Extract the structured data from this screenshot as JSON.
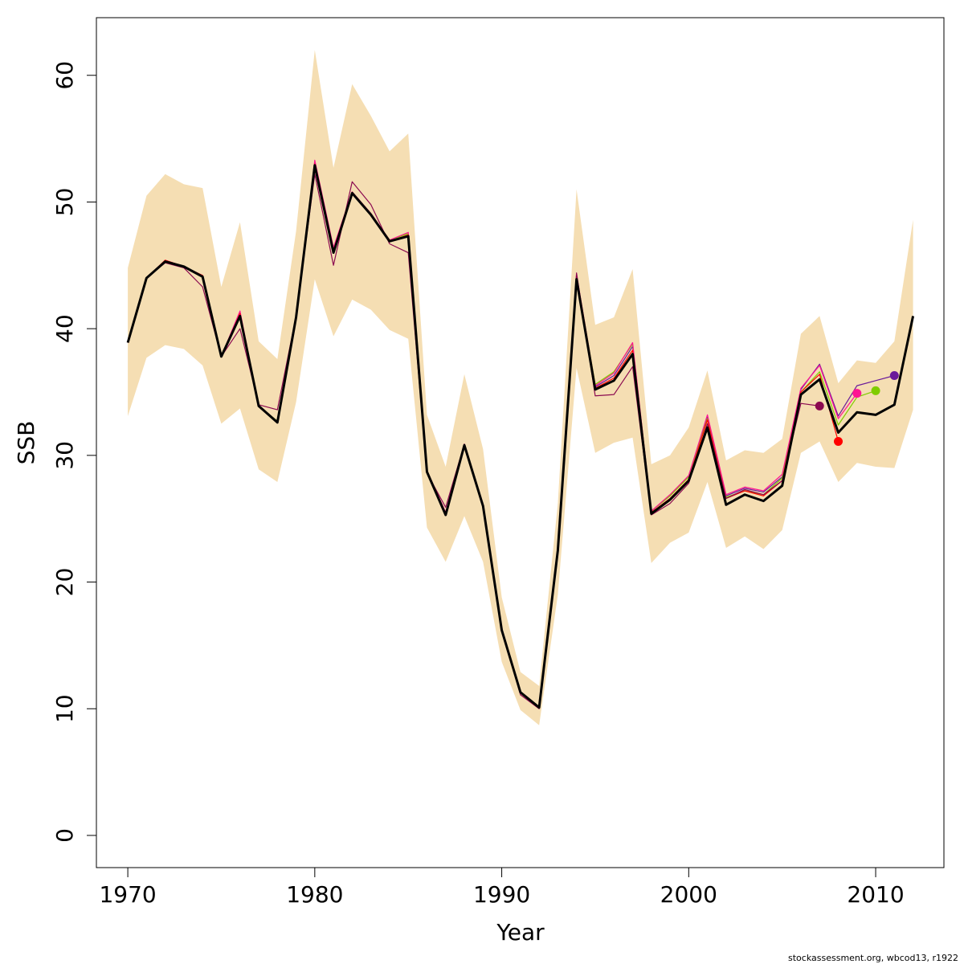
{
  "chart_data": {
    "type": "line",
    "xlabel": "Year",
    "ylabel": "SSB",
    "footnote": "stockassessment.org, wbcod13, r1922",
    "x": [
      1970,
      1971,
      1972,
      1973,
      1974,
      1975,
      1976,
      1977,
      1978,
      1979,
      1980,
      1981,
      1982,
      1983,
      1984,
      1985,
      1986,
      1987,
      1988,
      1989,
      1990,
      1991,
      1992,
      1993,
      1994,
      1995,
      1996,
      1997,
      1998,
      1999,
      2000,
      2001,
      2002,
      2003,
      2004,
      2005,
      2006,
      2007,
      2008,
      2009,
      2010,
      2011,
      2012
    ],
    "band": {
      "color": "#f5deb3",
      "upper": [
        44.8,
        50.5,
        52.2,
        51.4,
        51.1,
        43.3,
        48.4,
        39.0,
        37.6,
        47.7,
        62.0,
        52.7,
        59.3,
        56.8,
        54.0,
        55.4,
        33.2,
        29.1,
        36.4,
        30.5,
        18.8,
        12.9,
        11.8,
        26.2,
        51.0,
        40.3,
        40.9,
        44.7,
        29.3,
        30.0,
        32.2,
        36.7,
        29.6,
        30.4,
        30.2,
        31.3,
        39.6,
        41.0,
        35.7,
        37.5,
        37.3,
        39.0,
        48.6
      ],
      "lower": [
        33.1,
        37.7,
        38.7,
        38.4,
        37.1,
        32.5,
        33.7,
        28.9,
        27.9,
        34.2,
        43.9,
        39.4,
        42.3,
        41.5,
        39.9,
        39.2,
        24.3,
        21.6,
        25.2,
        21.6,
        13.7,
        9.9,
        8.7,
        19.0,
        36.9,
        30.2,
        31.0,
        31.4,
        21.5,
        23.1,
        23.9,
        27.9,
        22.7,
        23.6,
        22.6,
        24.1,
        30.2,
        31.1,
        27.9,
        29.4,
        29.1,
        29.0,
        33.6
      ]
    },
    "series": [
      {
        "color": "#000000",
        "values": [
          38.9,
          44.0,
          45.3,
          44.9,
          44.1,
          37.8,
          41.0,
          33.9,
          32.6,
          40.9,
          52.9,
          46.0,
          50.7,
          49.0,
          46.9,
          47.3,
          28.7,
          25.3,
          30.8,
          26.0,
          16.2,
          11.3,
          10.1,
          22.5,
          43.9,
          35.2,
          35.9,
          38.0,
          25.4,
          26.5,
          28.0,
          32.2,
          26.1,
          26.9,
          26.4,
          27.6,
          34.8,
          36.0,
          31.8,
          33.4,
          33.2,
          34.0,
          41.0
        ]
      },
      {
        "color": "#6a1b9a",
        "values": [
          38.9,
          44.0,
          45.4,
          44.9,
          44.2,
          37.8,
          41.2,
          33.9,
          32.7,
          40.9,
          53.1,
          46.2,
          50.8,
          49.1,
          46.9,
          47.4,
          28.8,
          25.4,
          30.8,
          26.1,
          16.3,
          11.3,
          10.1,
          22.6,
          44.1,
          35.4,
          36.3,
          38.6,
          25.6,
          26.8,
          28.4,
          33.0,
          26.8,
          27.4,
          27.1,
          28.3,
          35.2,
          37.2,
          33.1,
          35.5,
          35.9,
          36.3,
          null
        ]
      },
      {
        "color": "#7fcc00",
        "values": [
          38.9,
          44.0,
          45.4,
          44.9,
          44.2,
          37.8,
          41.3,
          33.9,
          32.7,
          40.9,
          53.2,
          46.3,
          50.8,
          49.1,
          47.0,
          47.5,
          28.8,
          25.4,
          30.8,
          26.1,
          16.3,
          11.3,
          10.1,
          22.6,
          44.2,
          35.6,
          36.6,
          38.8,
          25.6,
          26.8,
          28.3,
          32.9,
          26.7,
          27.2,
          26.9,
          28.2,
          35.0,
          36.6,
          32.4,
          34.6,
          35.1,
          null,
          null
        ]
      },
      {
        "color": "#ff1493",
        "values": [
          38.9,
          44.0,
          45.4,
          44.9,
          44.2,
          37.8,
          41.4,
          33.9,
          32.6,
          40.9,
          53.3,
          46.4,
          50.8,
          49.1,
          47.0,
          47.6,
          28.8,
          25.5,
          30.8,
          26.1,
          16.3,
          11.3,
          10.1,
          22.6,
          44.3,
          35.5,
          36.5,
          38.9,
          25.6,
          26.9,
          28.4,
          33.2,
          26.9,
          27.5,
          27.2,
          28.5,
          35.3,
          37.1,
          32.9,
          34.9,
          null,
          null,
          null
        ]
      },
      {
        "color": "#ff0000",
        "values": [
          38.9,
          44.0,
          45.4,
          44.9,
          44.2,
          37.8,
          41.2,
          33.9,
          32.6,
          40.9,
          53.0,
          46.2,
          50.7,
          49.0,
          46.9,
          47.4,
          28.7,
          25.3,
          30.8,
          26.0,
          16.2,
          11.3,
          10.1,
          22.5,
          44.0,
          35.3,
          36.1,
          38.3,
          25.5,
          26.6,
          28.1,
          32.8,
          26.6,
          27.2,
          26.8,
          28.0,
          35.0,
          36.4,
          31.1,
          null,
          null,
          null,
          null
        ]
      },
      {
        "color": "#8b0a50",
        "values": [
          38.9,
          44.0,
          45.2,
          44.8,
          43.3,
          37.8,
          40.0,
          34.0,
          33.6,
          41.0,
          52.2,
          45.0,
          51.6,
          49.8,
          46.7,
          46.0,
          28.6,
          25.9,
          30.9,
          26.0,
          16.2,
          11.1,
          10.0,
          22.4,
          44.4,
          34.7,
          34.8,
          37.0,
          25.3,
          26.2,
          27.8,
          32.5,
          26.6,
          27.3,
          26.9,
          28.0,
          34.1,
          33.9,
          null,
          null,
          null,
          null,
          null
        ]
      }
    ],
    "xlim": [
      1968.32,
      2013.65
    ],
    "ylim": [
      -2.54,
      64.55
    ],
    "xticks": [
      1970,
      1980,
      1990,
      2000,
      2010
    ],
    "yticks": [
      0,
      10,
      20,
      30,
      40,
      50,
      60
    ]
  }
}
